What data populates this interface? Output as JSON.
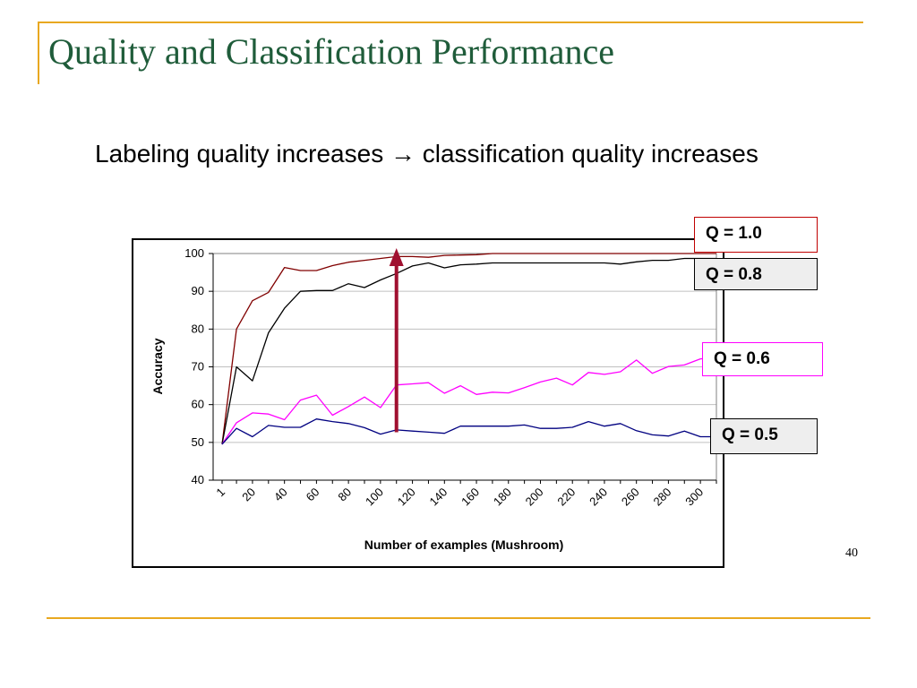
{
  "slide": {
    "title": "Quality and Classification Performance",
    "headline": "Labeling quality increases → classification quality increases",
    "page_number": "40"
  },
  "chart_data": {
    "type": "line",
    "xlabel": "Number of examples (Mushroom)",
    "ylabel": "Accuracy",
    "ylim": [
      40,
      100
    ],
    "yticks": [
      "100",
      "90",
      "80",
      "70",
      "60",
      "50",
      "40"
    ],
    "xticks": [
      "1",
      "20",
      "40",
      "60",
      "80",
      "100",
      "120",
      "140",
      "160",
      "180",
      "200",
      "220",
      "240",
      "260",
      "280",
      "300"
    ],
    "grid": "horizontal",
    "x": [
      1,
      10,
      20,
      30,
      40,
      50,
      60,
      70,
      80,
      90,
      100,
      110,
      120,
      130,
      140,
      150,
      160,
      170,
      180,
      190,
      200,
      210,
      220,
      230,
      240,
      250,
      260,
      270,
      280,
      290,
      300,
      310
    ],
    "series": [
      {
        "name": "Q = 1.0",
        "color": "#800000",
        "values": [
          49.5,
          80,
          87.5,
          89.7,
          96.3,
          95.5,
          95.5,
          96.8,
          97.7,
          98.2,
          98.7,
          99.2,
          99.2,
          99.0,
          99.5,
          99.6,
          99.7,
          100,
          100,
          100,
          100,
          100,
          100,
          100,
          100,
          100,
          100,
          100,
          100,
          100,
          100,
          100
        ]
      },
      {
        "name": "Q = 0.8",
        "color": "#000000",
        "values": [
          49.5,
          70,
          66.3,
          79,
          85.5,
          90,
          90.2,
          90.2,
          92,
          91,
          93,
          94.7,
          96.7,
          97.5,
          96.2,
          97,
          97.2,
          97.5,
          97.5,
          97.5,
          97.5,
          97.5,
          97.5,
          97.5,
          97.5,
          97.2,
          97.8,
          98.2,
          98.2,
          98.7,
          98.7,
          98.7
        ]
      },
      {
        "name": "Q = 0.6",
        "color": "#ff00ff",
        "values": [
          49.5,
          55.2,
          57.8,
          57.5,
          56,
          61.2,
          62.5,
          57.2,
          59.5,
          62,
          59.2,
          65.2,
          65.5,
          65.8,
          63,
          65,
          62.7,
          63.3,
          63.1,
          64.5,
          66,
          67,
          65.2,
          68.5,
          68,
          68.7,
          71.8,
          68.3,
          70.1,
          70.5,
          72.1,
          72.5
        ]
      },
      {
        "name": "Q = 0.5",
        "color": "#000080",
        "values": [
          49.5,
          53.7,
          51.5,
          54.5,
          54,
          54,
          56.2,
          55.5,
          55,
          53.9,
          52.2,
          53.3,
          53,
          52.7,
          52.4,
          54.3,
          54.3,
          54.3,
          54.3,
          54.6,
          53.7,
          53.7,
          54,
          55.5,
          54.3,
          55,
          53.1,
          52,
          51.7,
          53,
          51.5,
          51.5
        ]
      }
    ],
    "highlight_arrow": {
      "x": 110,
      "from_y": 52.7,
      "to_y": 100,
      "color": "#a01030"
    }
  }
}
